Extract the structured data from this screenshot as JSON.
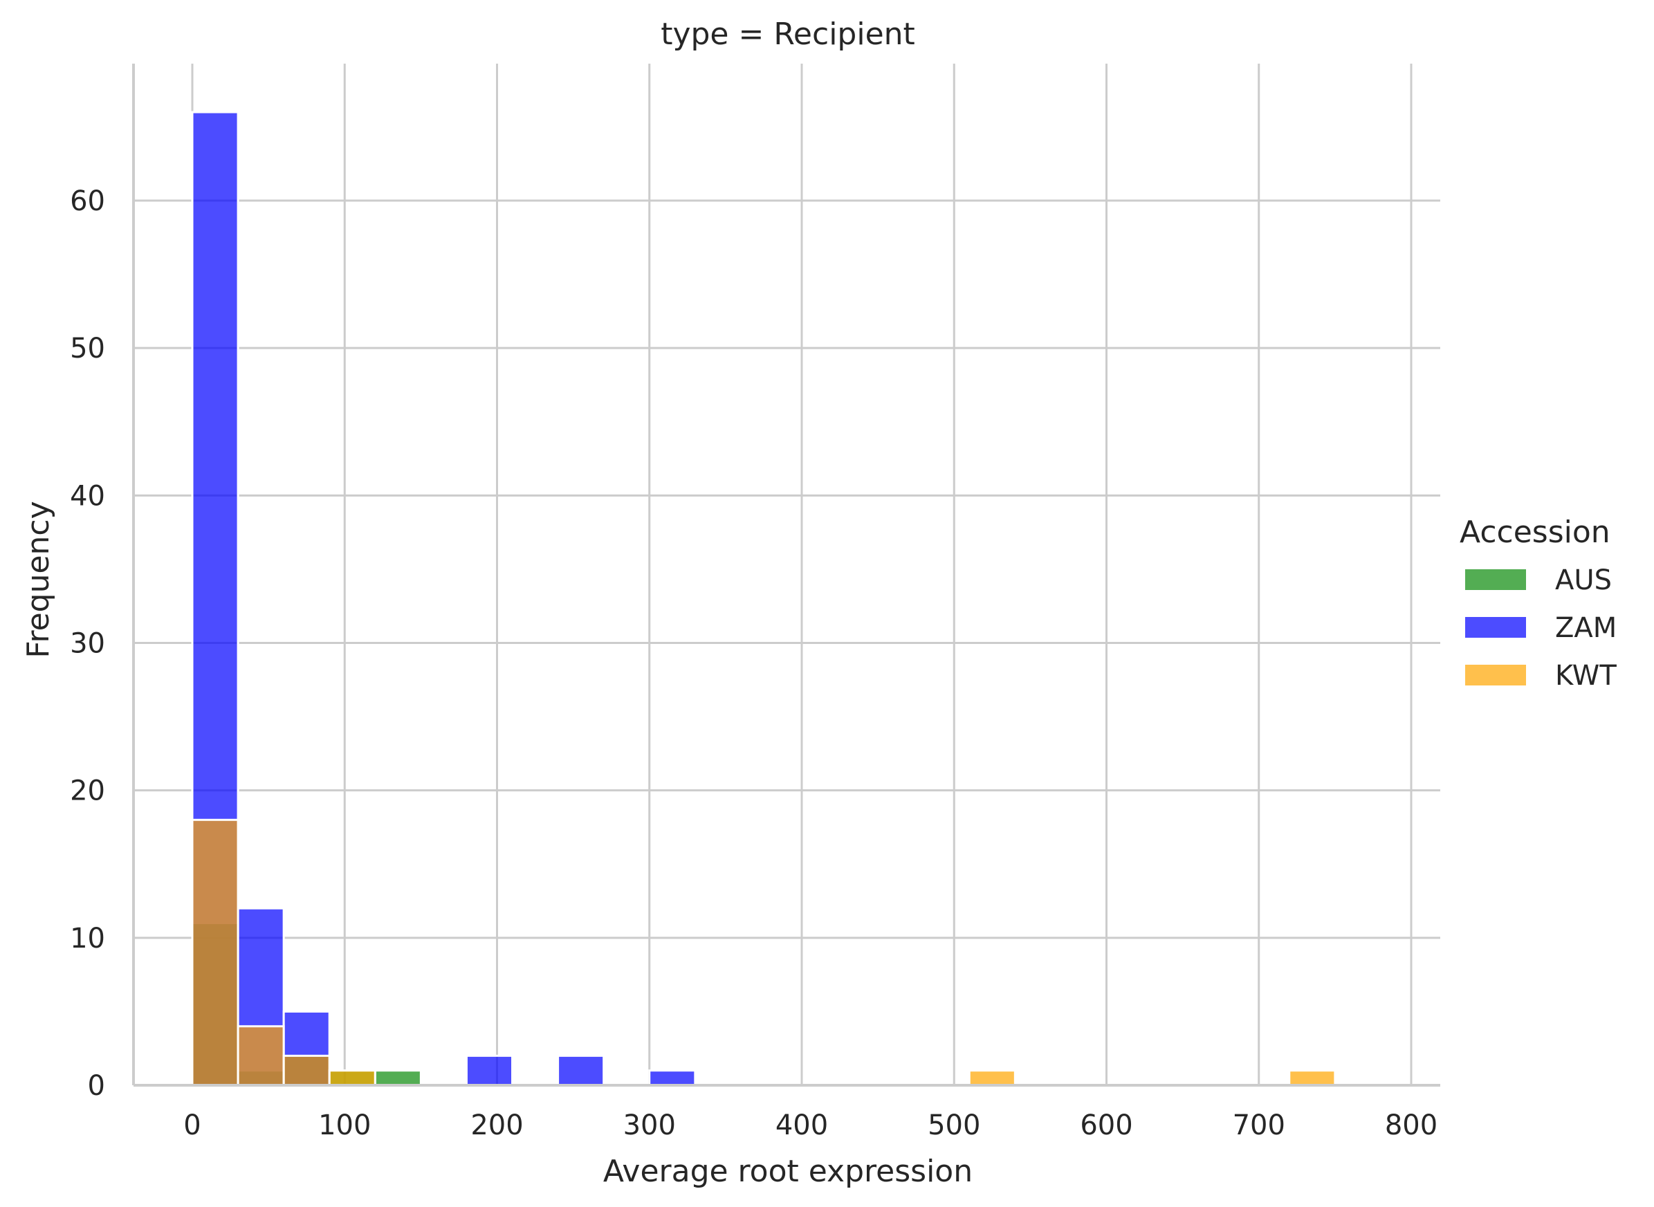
{
  "chart_data": {
    "type": "bar",
    "title": "type = Recipient",
    "xlabel": "Average root expression",
    "ylabel": "Frequency",
    "xlim": [
      -40,
      820
    ],
    "ylim": [
      0,
      69
    ],
    "x_ticks": [
      0,
      100,
      200,
      300,
      400,
      500,
      600,
      700,
      800
    ],
    "y_ticks": [
      0,
      10,
      20,
      30,
      40,
      50,
      60
    ],
    "grid": true,
    "legend_title": "Accession",
    "legend_position": "right",
    "bin_width": 30,
    "series": [
      {
        "name": "AUS",
        "color": "#0a8a0a",
        "bins": [
          {
            "x0": 0,
            "x1": 30,
            "count": 11
          },
          {
            "x0": 30,
            "x1": 60,
            "count": 1
          },
          {
            "x0": 60,
            "x1": 90,
            "count": 2
          },
          {
            "x0": 90,
            "x1": 120,
            "count": 1
          },
          {
            "x0": 120,
            "x1": 150,
            "count": 1
          }
        ]
      },
      {
        "name": "ZAM",
        "color": "#0000ff",
        "bins": [
          {
            "x0": 0,
            "x1": 30,
            "count": 66
          },
          {
            "x0": 30,
            "x1": 60,
            "count": 12
          },
          {
            "x0": 60,
            "x1": 90,
            "count": 5
          },
          {
            "x0": 180,
            "x1": 210,
            "count": 2
          },
          {
            "x0": 240,
            "x1": 270,
            "count": 2
          },
          {
            "x0": 300,
            "x1": 330,
            "count": 1
          }
        ]
      },
      {
        "name": "KWT",
        "color": "#ffa500",
        "bins": [
          {
            "x0": 0,
            "x1": 30,
            "count": 18
          },
          {
            "x0": 30,
            "x1": 60,
            "count": 4
          },
          {
            "x0": 60,
            "x1": 90,
            "count": 2
          },
          {
            "x0": 90,
            "x1": 120,
            "count": 1
          },
          {
            "x0": 510,
            "x1": 540,
            "count": 1
          },
          {
            "x0": 720,
            "x1": 750,
            "count": 1
          }
        ]
      }
    ]
  }
}
